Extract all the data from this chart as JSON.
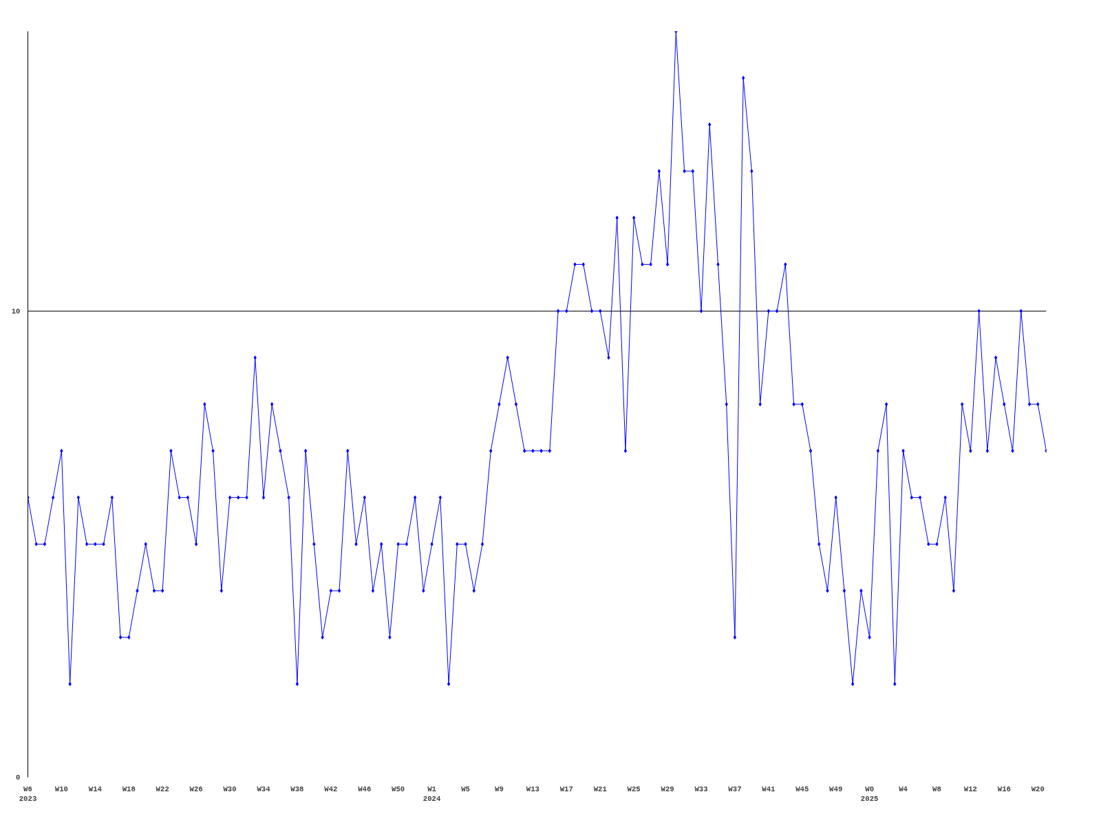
{
  "chart_data": {
    "type": "line",
    "categories": [
      "W6\n2023",
      null,
      null,
      null,
      "W10",
      null,
      null,
      null,
      "W14",
      null,
      null,
      null,
      "W18",
      null,
      null,
      null,
      "W22",
      null,
      null,
      null,
      "W26",
      null,
      null,
      null,
      "W30",
      null,
      null,
      null,
      "W34",
      null,
      null,
      null,
      "W38",
      null,
      null,
      null,
      "W42",
      null,
      null,
      null,
      "W46",
      null,
      null,
      null,
      "W50",
      null,
      null,
      null,
      "W1\n2024",
      null,
      null,
      null,
      "W5",
      null,
      null,
      null,
      "W9",
      null,
      null,
      null,
      "W13",
      null,
      null,
      null,
      "W17",
      null,
      null,
      null,
      "W21",
      null,
      null,
      null,
      "W25",
      null,
      null,
      null,
      "W29",
      null,
      null,
      null,
      "W33",
      null,
      null,
      null,
      "W37",
      null,
      null,
      null,
      "W41",
      null,
      null,
      null,
      "W45",
      null,
      null,
      null,
      "W49",
      null,
      null,
      null,
      "W0\n2025",
      null,
      null,
      null,
      "W4",
      null,
      null,
      null,
      "W8",
      null,
      null,
      null,
      "W12",
      null,
      null,
      null,
      "W16",
      null,
      null,
      null,
      "W20",
      null
    ],
    "series": [
      {
        "color": "#0000ff",
        "values": [
          6,
          5,
          5,
          6,
          7,
          2,
          6,
          5,
          5,
          5,
          6,
          3,
          3,
          4,
          5,
          4,
          4,
          7,
          6,
          6,
          5,
          8,
          7,
          4,
          6,
          6,
          6,
          9,
          6,
          8,
          7,
          6,
          2,
          7,
          5,
          3,
          4,
          4,
          7,
          5,
          6,
          4,
          5,
          3,
          5,
          5,
          6,
          4,
          5,
          6,
          2,
          5,
          5,
          4,
          5,
          7,
          8,
          9,
          8,
          7,
          7,
          7,
          7,
          10,
          10,
          11,
          11,
          10,
          10,
          9,
          12,
          7,
          12,
          11,
          11,
          13,
          11,
          16,
          13,
          13,
          10,
          14,
          11,
          8,
          3,
          15,
          13,
          8,
          10,
          10,
          11,
          8,
          8,
          7,
          5,
          4,
          6,
          4,
          2,
          4,
          3,
          7,
          8,
          2,
          7,
          6,
          6,
          5,
          5,
          6,
          4,
          8,
          7,
          10,
          7,
          9,
          8,
          7,
          10,
          8,
          8,
          7
        ]
      }
    ],
    "ylim": [
      0,
      16
    ],
    "yticks": [
      0,
      10
    ],
    "grid": "y",
    "marker": "diamond",
    "line_style": "solid"
  }
}
